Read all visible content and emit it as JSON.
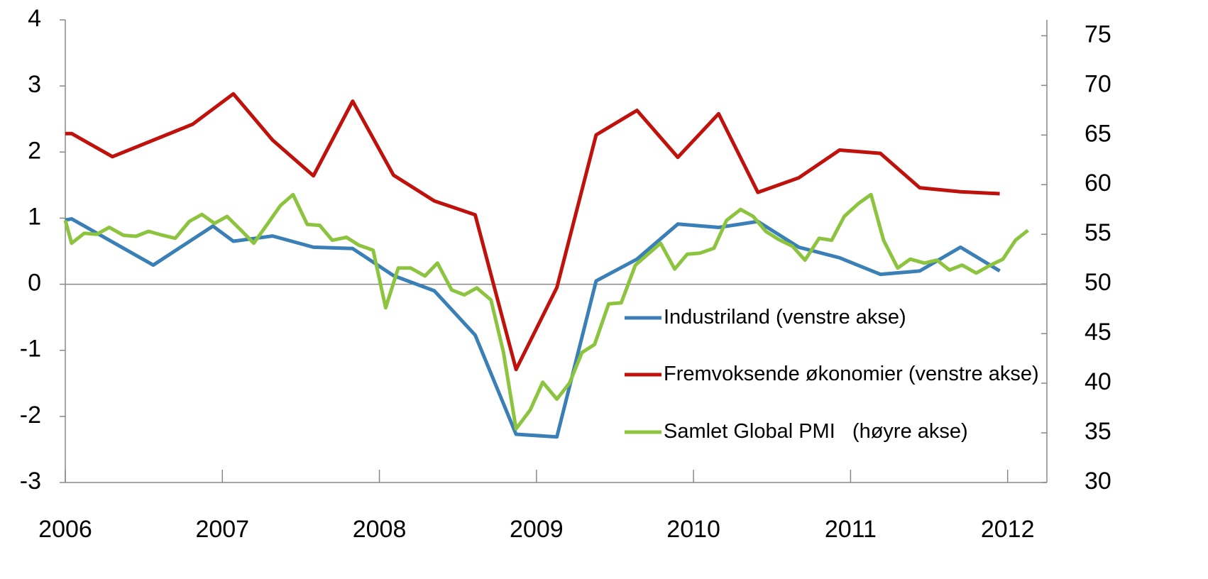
{
  "chart_data": {
    "type": "line",
    "xlim": [
      2006,
      2012.25
    ],
    "xticks": [
      2006,
      2007,
      2008,
      2009,
      2010,
      2011,
      2012
    ],
    "ylim": [
      -3,
      4
    ],
    "yticks": [
      -3,
      -2,
      -1,
      0,
      1,
      2,
      3,
      4
    ],
    "y2lim": [
      30,
      76.6
    ],
    "y2ticks": [
      30,
      35,
      40,
      45,
      50,
      55,
      60,
      65,
      70,
      75
    ],
    "series": [
      {
        "name": "Industriland (venstre akse)",
        "color": "#3a7fb5",
        "x": [
          2006.0,
          2006.04,
          2006.56,
          2006.94,
          2007.07,
          2007.32,
          2007.58,
          2007.83,
          2008.09,
          2008.35,
          2008.61,
          2008.87,
          2009.13,
          2009.38,
          2009.64,
          2009.9,
          2010.16,
          2010.41,
          2010.67,
          2010.93,
          2011.19,
          2011.44,
          2011.7,
          2011.95
        ],
        "values": [
          0.97,
          0.99,
          0.29,
          0.88,
          0.65,
          0.73,
          0.56,
          0.54,
          0.13,
          -0.1,
          -0.77,
          -2.27,
          -2.31,
          0.05,
          0.38,
          0.91,
          0.86,
          0.95,
          0.56,
          0.4,
          0.15,
          0.2,
          0.56,
          0.2
        ]
      },
      {
        "name": "Fremvoksende økonomier (venstre akse)",
        "color": "#c0120c",
        "x": [
          2006.0,
          2006.04,
          2006.3,
          2006.81,
          2007.07,
          2007.32,
          2007.58,
          2007.83,
          2008.09,
          2008.35,
          2008.61,
          2008.87,
          2009.13,
          2009.38,
          2009.64,
          2009.9,
          2010.16,
          2010.41,
          2010.67,
          2010.93,
          2011.19,
          2011.44,
          2011.7,
          2011.95
        ],
        "values": [
          2.28,
          2.28,
          1.93,
          2.42,
          2.88,
          2.18,
          1.64,
          2.77,
          1.65,
          1.26,
          1.05,
          -1.29,
          -0.05,
          2.26,
          2.63,
          1.92,
          2.58,
          1.39,
          1.61,
          2.03,
          1.98,
          1.46,
          1.4,
          1.37
        ]
      },
      {
        "name": "Samlet Global PMI   (høyre akse)",
        "color": "#8dc43f",
        "axis": "y2",
        "x": [
          2006.0,
          2006.04,
          2006.12,
          2006.2,
          2006.28,
          2006.37,
          2006.45,
          2006.53,
          2006.62,
          2006.7,
          2006.79,
          2006.87,
          2006.95,
          2007.03,
          2007.12,
          2007.2,
          2007.29,
          2007.37,
          2007.45,
          2007.54,
          2007.62,
          2007.7,
          2007.79,
          2007.87,
          2007.96,
          2008.04,
          2008.12,
          2008.2,
          2008.29,
          2008.37,
          2008.46,
          2008.54,
          2008.62,
          2008.71,
          2008.79,
          2008.87,
          2008.96,
          2009.04,
          2009.13,
          2009.21,
          2009.29,
          2009.37,
          2009.46,
          2009.54,
          2009.63,
          2009.71,
          2009.79,
          2009.88,
          2009.96,
          2010.04,
          2010.13,
          2010.21,
          2010.3,
          2010.38,
          2010.46,
          2010.54,
          2010.63,
          2010.71,
          2010.8,
          2010.88,
          2010.96,
          2011.05,
          2011.13,
          2011.21,
          2011.3,
          2011.38,
          2011.47,
          2011.55,
          2011.63,
          2011.71,
          2011.8,
          2011.88,
          2011.97,
          2012.05,
          2012.13
        ],
        "values": [
          56.4,
          54.1,
          55.1,
          55.0,
          55.7,
          54.9,
          54.8,
          55.3,
          54.9,
          54.6,
          56.3,
          57.0,
          56.1,
          56.8,
          55.4,
          54.1,
          56.1,
          57.9,
          59.0,
          56.0,
          55.9,
          54.4,
          54.7,
          53.9,
          53.4,
          47.6,
          51.6,
          51.6,
          50.8,
          52.1,
          49.4,
          48.9,
          49.6,
          48.4,
          43.1,
          35.4,
          37.3,
          40.1,
          38.4,
          40.0,
          43.1,
          43.9,
          48.0,
          48.1,
          51.9,
          53.0,
          54.1,
          51.5,
          53.0,
          53.1,
          53.6,
          56.4,
          57.5,
          56.8,
          55.3,
          54.5,
          53.8,
          52.4,
          54.6,
          54.4,
          56.8,
          58.1,
          59.0,
          54.4,
          51.6,
          52.5,
          52.1,
          52.4,
          51.4,
          51.9,
          51.1,
          51.8,
          52.5,
          54.4,
          55.4
        ]
      }
    ]
  }
}
